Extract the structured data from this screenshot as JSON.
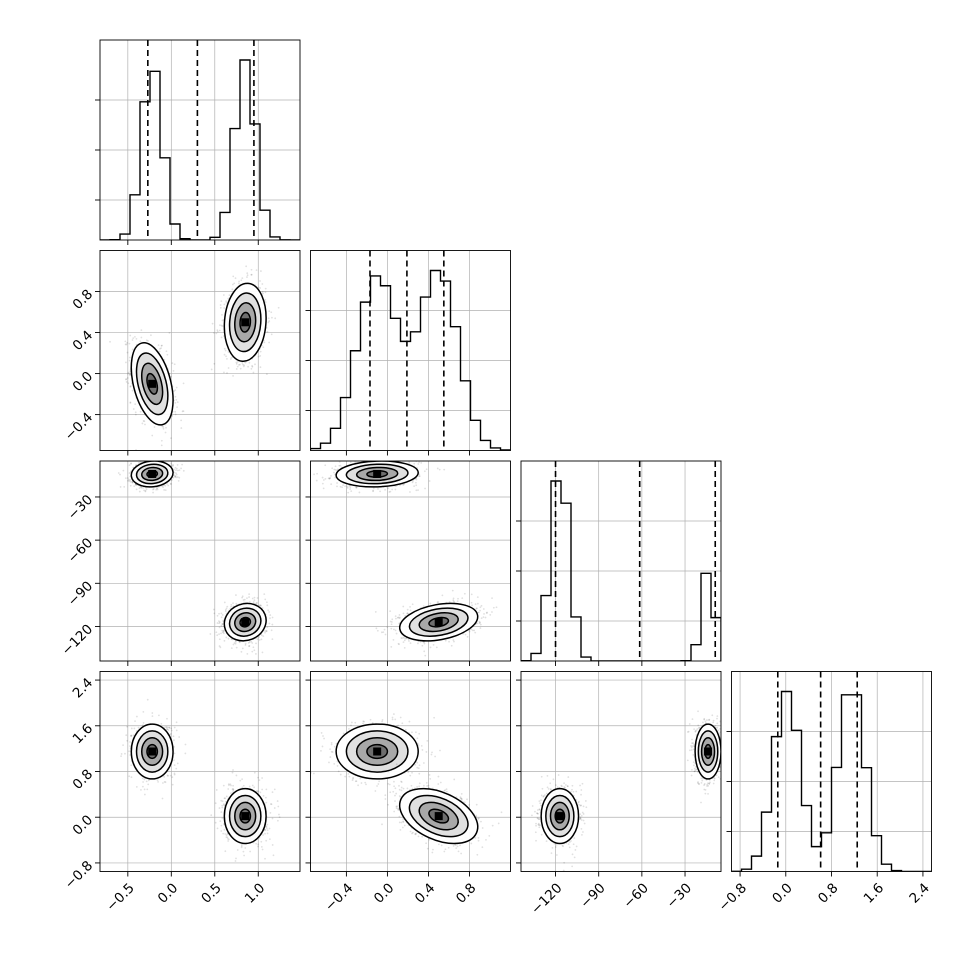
{
  "chart_data": {
    "type": "corner",
    "dimensions": 4,
    "colors": {
      "frame": "#000000",
      "grid": "#b0b0b0",
      "density": "#000000",
      "background": "#ffffff"
    },
    "grid": true,
    "axes": [
      {
        "range": [
          -0.82,
          1.48
        ],
        "ticks": [
          -0.5,
          0.0,
          0.5,
          1.0
        ],
        "tick_labels": [
          "−0.5",
          "0.0",
          "0.5",
          "1.0"
        ],
        "quantiles": [
          -0.27,
          0.3,
          0.95
        ]
      },
      {
        "range": [
          -0.75,
          1.2
        ],
        "ticks": [
          -0.4,
          0.0,
          0.4,
          0.8
        ],
        "tick_labels": [
          "−0.4",
          "0.0",
          "0.4",
          "0.8"
        ],
        "quantiles": [
          -0.17,
          0.19,
          0.55
        ]
      },
      {
        "range": [
          -144,
          -5
        ],
        "ticks": [
          -120,
          -90,
          -60,
          -30
        ],
        "tick_labels": [
          "−120",
          "−90",
          "−60",
          "−30"
        ],
        "quantiles": [
          -120,
          -61.5,
          -9
        ]
      },
      {
        "range": [
          -0.95,
          2.55
        ],
        "ticks": [
          -0.8,
          0.0,
          0.8,
          1.6,
          2.4
        ],
        "tick_labels": [
          "−0.8",
          "0.0",
          "0.8",
          "1.6",
          "2.4"
        ],
        "quantiles": [
          -0.14,
          0.61,
          1.25
        ]
      }
    ],
    "modes": [
      {
        "weight": 0.5,
        "mean": [
          -0.22,
          -0.1,
          -14,
          1.15
        ],
        "sd": [
          0.12,
          0.2,
          4.5,
          0.24
        ],
        "corr": [
          [
            1,
            -0.4,
            0.1,
            0.0
          ],
          [
            -0.4,
            1,
            0.1,
            0.0
          ],
          [
            0.1,
            0.1,
            1,
            0.0
          ],
          [
            0.0,
            0.0,
            0.0,
            1
          ]
        ]
      },
      {
        "weight": 0.5,
        "mean": [
          0.85,
          0.5,
          -117,
          0.02
        ],
        "sd": [
          0.12,
          0.19,
          6.5,
          0.24
        ],
        "corr": [
          [
            1,
            0.1,
            0.1,
            0.0
          ],
          [
            0.1,
            1,
            0.3,
            -0.4
          ],
          [
            0.1,
            0.3,
            1,
            0.0
          ],
          [
            0.0,
            -0.4,
            0.0,
            1
          ]
        ]
      }
    ],
    "histograms": [
      {
        "bins": 20,
        "peaks": [
          0.7,
          0.72
        ]
      },
      {
        "bins": 20,
        "peaks": [
          0.68,
          0.7
        ]
      },
      {
        "bins": 20,
        "peaks": [
          0.4,
          0.85
        ]
      },
      {
        "bins": 20,
        "peaks": [
          0.65,
          0.62
        ]
      }
    ]
  }
}
